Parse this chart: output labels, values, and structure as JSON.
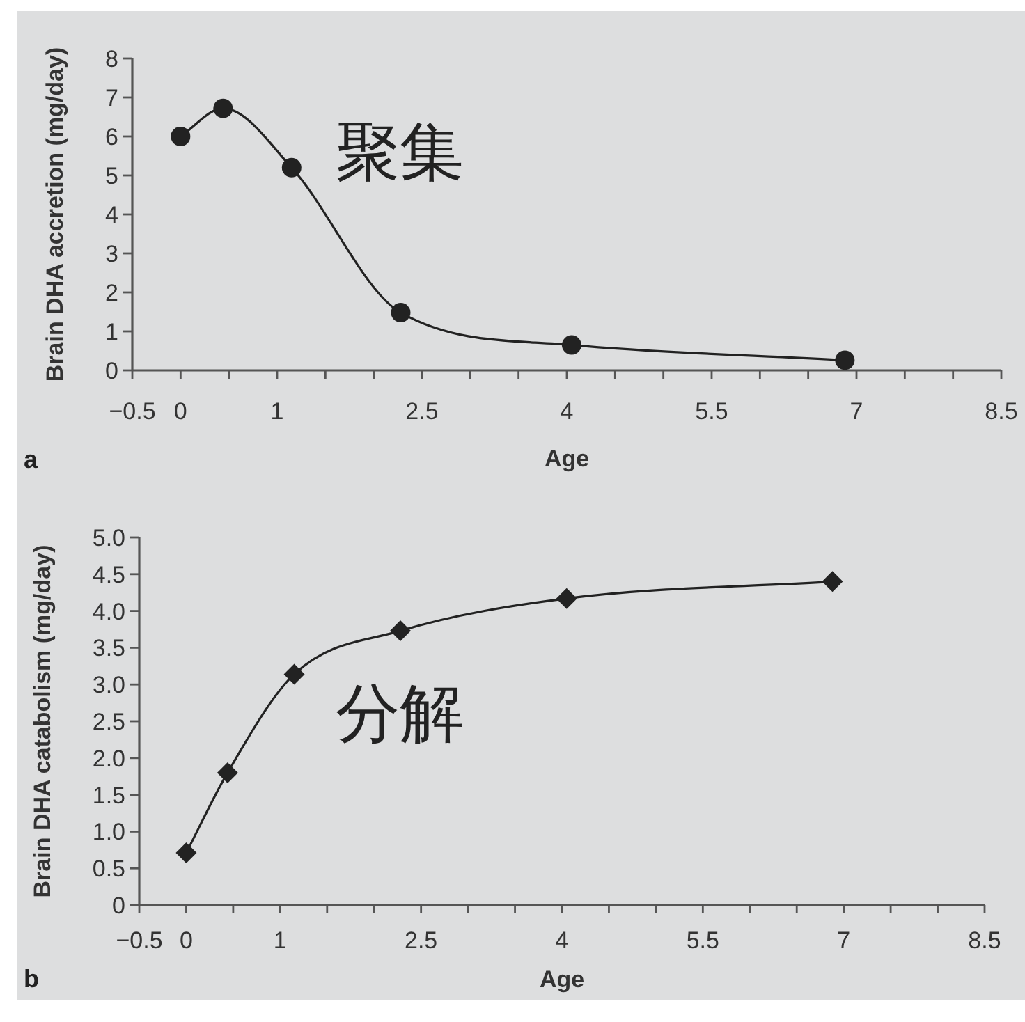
{
  "chart_data": [
    {
      "type": "line",
      "title": "a",
      "xlabel": "Age",
      "ylabel": "Brain DHA accretion (mg/day)",
      "x": [
        0,
        0.44,
        1.15,
        2.28,
        4.05,
        6.88
      ],
      "values": [
        6.0,
        6.72,
        5.2,
        1.48,
        0.65,
        0.26
      ],
      "color": "#222222",
      "marker": "circle",
      "line_style": "solid",
      "xlim": [
        -0.5,
        8.5
      ],
      "xticks": [
        {
          "value": -0.5,
          "label": "−0.5"
        },
        0,
        {
          "value": 0.5,
          "label": null
        },
        1,
        {
          "value": 1.5,
          "label": null
        },
        {
          "value": 2,
          "label": null
        },
        2.5,
        {
          "value": 3,
          "label": null
        },
        {
          "value": 3.5,
          "label": null
        },
        4,
        {
          "value": 4.5,
          "label": null
        },
        {
          "value": 5,
          "label": null
        },
        5.5,
        {
          "value": 6,
          "label": null
        },
        {
          "value": 6.5,
          "label": null
        },
        7,
        {
          "value": 7.5,
          "label": null
        },
        {
          "value": 8,
          "label": null
        },
        8.5
      ],
      "ylim": [
        0,
        8
      ],
      "yticks": [
        0,
        1,
        2,
        3,
        4,
        5,
        6,
        7,
        8
      ],
      "annotations": [
        "聚集"
      ]
    },
    {
      "type": "line",
      "title": "b",
      "xlabel": "Age",
      "ylabel": "Brain DHA catabolism (mg/day)",
      "x": [
        0,
        0.44,
        1.15,
        2.28,
        4.05,
        6.88
      ],
      "values": [
        0.71,
        1.8,
        3.14,
        3.73,
        4.17,
        4.4
      ],
      "color": "#222222",
      "marker": "diamond",
      "line_style": "solid",
      "xlim": [
        -0.5,
        8.5
      ],
      "xticks": [
        {
          "value": -0.5,
          "label": "−0.5"
        },
        0,
        {
          "value": 0.5,
          "label": null
        },
        1,
        {
          "value": 1.5,
          "label": null
        },
        {
          "value": 2,
          "label": null
        },
        2.5,
        {
          "value": 3,
          "label": null
        },
        {
          "value": 3.5,
          "label": null
        },
        4,
        {
          "value": 4.5,
          "label": null
        },
        {
          "value": 5,
          "label": null
        },
        5.5,
        {
          "value": 6,
          "label": null
        },
        {
          "value": 6.5,
          "label": null
        },
        7,
        {
          "value": 7.5,
          "label": null
        },
        {
          "value": 8,
          "label": null
        },
        8.5
      ],
      "ylim": [
        0,
        5
      ],
      "yticks": [
        0,
        0.5,
        {
          "value": 1,
          "label": "1.0"
        },
        1.5,
        {
          "value": 2,
          "label": "2.0"
        },
        2.5,
        {
          "value": 3,
          "label": "3.0"
        },
        3.5,
        {
          "value": 4,
          "label": "4.0"
        },
        4.5,
        {
          "value": 5,
          "label": "5.0"
        }
      ],
      "annotations": [
        "分解"
      ]
    }
  ]
}
